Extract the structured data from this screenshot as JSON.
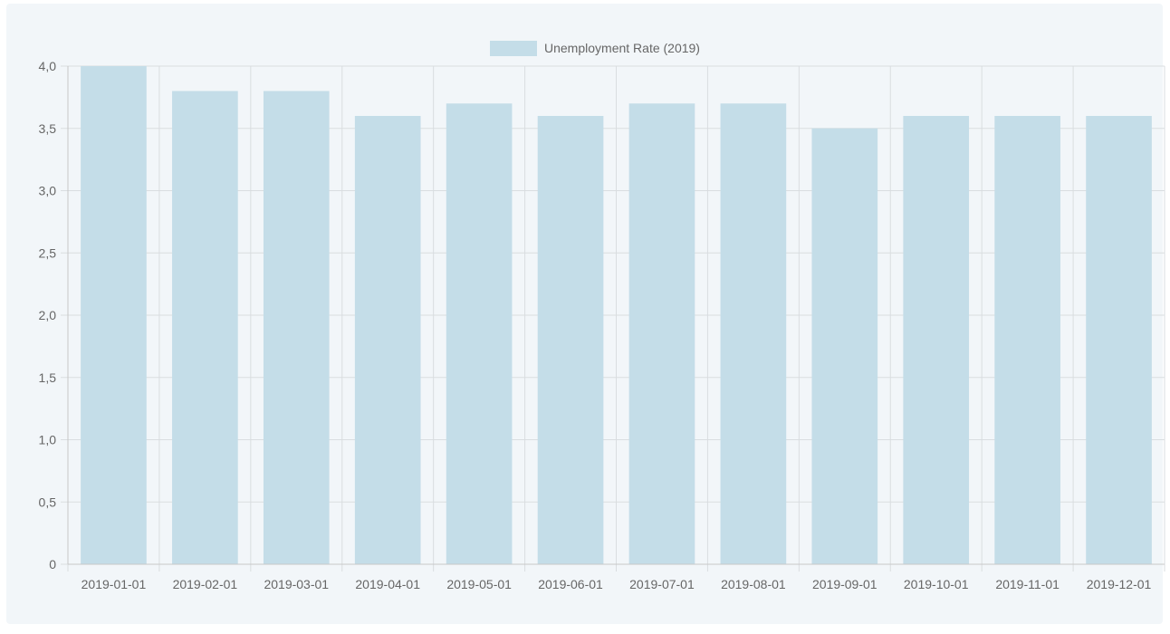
{
  "chart_data": {
    "type": "bar",
    "categories": [
      "2019-01-01",
      "2019-02-01",
      "2019-03-01",
      "2019-04-01",
      "2019-05-01",
      "2019-06-01",
      "2019-07-01",
      "2019-08-01",
      "2019-09-01",
      "2019-10-01",
      "2019-11-01",
      "2019-12-01"
    ],
    "series": [
      {
        "name": "Unemployment Rate (2019)",
        "values": [
          4.0,
          3.8,
          3.8,
          3.6,
          3.7,
          3.6,
          3.7,
          3.7,
          3.5,
          3.6,
          3.6,
          3.6
        ]
      }
    ],
    "ylim": [
      0,
      4
    ],
    "yticks": [
      "0",
      "0,5",
      "1,0",
      "1,5",
      "2,0",
      "2,5",
      "3,0",
      "3,5",
      "4,0"
    ],
    "grid": true,
    "legend_position": "top-center",
    "colors": {
      "bar": "#c4dde8",
      "background": "#f2f6f9",
      "grid": "#d9dde0",
      "axis": "#c8c8c8"
    }
  }
}
